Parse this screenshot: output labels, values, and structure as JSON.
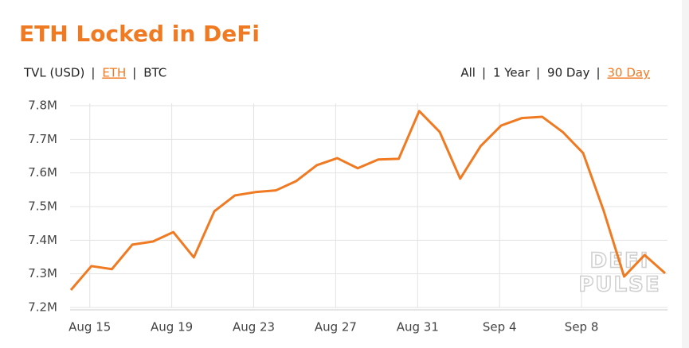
{
  "chart_data": {
    "type": "line",
    "title": "ETH Locked in DeFi",
    "metric_tabs": [
      "TVL (USD)",
      "ETH",
      "BTC"
    ],
    "metric_selected": 1,
    "range_tabs": [
      "All",
      "1 Year",
      "90 Day",
      "30 Day"
    ],
    "range_selected": 3,
    "watermark": [
      "DEFI",
      "PULSE"
    ],
    "categories": [
      null,
      "Aug 15",
      null,
      null,
      null,
      "Aug 19",
      null,
      null,
      null,
      "Aug 23",
      null,
      null,
      null,
      "Aug 27",
      null,
      null,
      null,
      "Aug 31",
      null,
      null,
      null,
      "Sep 4",
      null,
      null,
      null,
      "Sep 8",
      null,
      null,
      null,
      null
    ],
    "series": [
      {
        "name": "ETH",
        "color": "#f07a22",
        "values": [
          7252000,
          7323000,
          7314000,
          7387000,
          7396000,
          7424000,
          7349000,
          7486000,
          7533000,
          7543000,
          7548000,
          7576000,
          7623000,
          7644000,
          7614000,
          7640000,
          7642000,
          7784000,
          7722000,
          7583000,
          7680000,
          7741000,
          7763000,
          7767000,
          7722000,
          7659000,
          7488000,
          7292000,
          7356000,
          7302000
        ]
      }
    ],
    "ylim": [
      7200000,
      7800000
    ],
    "yticks": [
      {
        "value": 7200000,
        "label": "7.2M"
      },
      {
        "value": 7300000,
        "label": "7.3M"
      },
      {
        "value": 7400000,
        "label": "7.4M"
      },
      {
        "value": 7500000,
        "label": "7.5M"
      },
      {
        "value": 7600000,
        "label": "7.6M"
      },
      {
        "value": 7700000,
        "label": "7.7M"
      },
      {
        "value": 7800000,
        "label": "7.8M"
      }
    ],
    "grid": true
  }
}
